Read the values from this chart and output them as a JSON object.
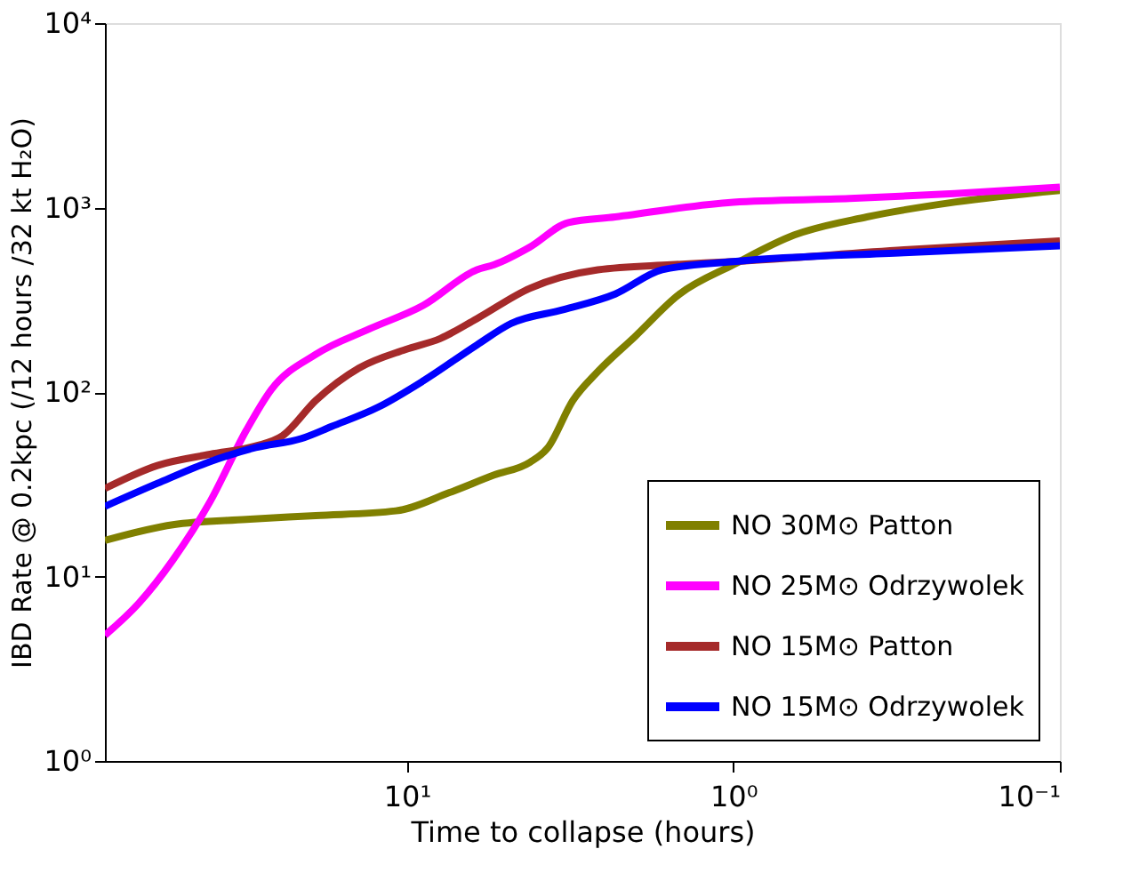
{
  "chart_data": {
    "type": "line",
    "xlabel": "Time to collapse (hours)",
    "ylabel": "IBD Rate @ 0.2kpc (/12 hours /32 kt H₂O)",
    "log": "xy",
    "grid": false,
    "legend": "bottom right",
    "marker": "none",
    "line_style": "solid",
    "xlim": [
      84,
      0.1
    ],
    "ylim": [
      1,
      10000
    ],
    "xticks": [
      {
        "value": 10,
        "label": "10¹"
      },
      {
        "value": 1,
        "label": "10⁰"
      },
      {
        "value": 0.1,
        "label": "10⁻¹"
      }
    ],
    "yticks": [
      {
        "value": 1,
        "label": "10⁰"
      },
      {
        "value": 10,
        "label": "10¹"
      },
      {
        "value": 100,
        "label": "10²"
      },
      {
        "value": 1000,
        "label": "10³"
      },
      {
        "value": 10000,
        "label": "10⁴"
      }
    ],
    "series": [
      {
        "name": "NO 30M⊙ Patton",
        "color": "#808000",
        "x": [
          84,
          52,
          31,
          19,
          10.8,
          7.4,
          5.4,
          4.2,
          3.7,
          3.1,
          2.6,
          2.0,
          1.46,
          1,
          0.65,
          0.39,
          0.21,
          0.1
        ],
        "values": [
          15.7,
          19.1,
          20.4,
          21.4,
          22.7,
          28.5,
          35.5,
          41.6,
          49.8,
          90,
          129,
          200,
          340,
          490,
          710,
          890,
          1070,
          1240
        ]
      },
      {
        "name": "NO 25M⊙ Odrzywolek",
        "color": "#ff00ff",
        "x": [
          84,
          66,
          52,
          40,
          31,
          26,
          19,
          13,
          8.9,
          6.1,
          5.4,
          4.2,
          3.2,
          2.3,
          1,
          0.44,
          0.21,
          0.1
        ],
        "values": [
          4.8,
          7.2,
          12.3,
          25.5,
          62,
          103,
          160,
          220,
          295,
          460,
          490,
          610,
          830,
          890,
          1070,
          1120,
          1190,
          1290
        ]
      },
      {
        "name": "NO 15M⊙ Patton",
        "color": "#a52a2a",
        "x": [
          84,
          58,
          40,
          29,
          24,
          19,
          14,
          10.1,
          7.9,
          6.1,
          4.2,
          2.6,
          1.55,
          1,
          0.3,
          0.1
        ],
        "values": [
          30,
          40,
          46,
          51,
          58,
          90,
          135,
          170,
          195,
          250,
          365,
          460,
          490,
          510,
          590,
          660
        ]
      },
      {
        "name": "NO 15M⊙ Odrzywolek",
        "color": "#0000ff",
        "x": [
          84,
          58,
          40,
          29,
          21,
          17,
          12.2,
          8.9,
          6.1,
          4.8,
          3.3,
          2.3,
          1.65,
          1,
          0.3,
          0.1
        ],
        "values": [
          24,
          32,
          42,
          50,
          56,
          65,
          83,
          115,
          180,
          235,
          280,
          340,
          460,
          510,
          570,
          620
        ]
      }
    ]
  }
}
